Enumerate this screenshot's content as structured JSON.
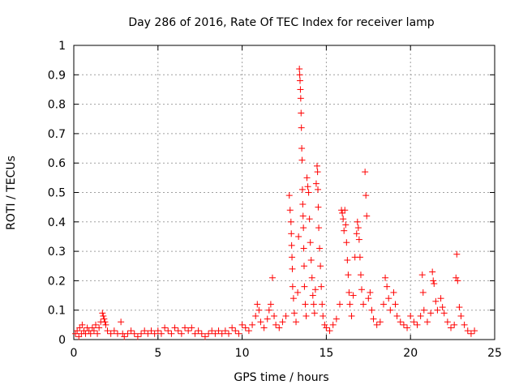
{
  "chart_data": {
    "type": "scatter",
    "title": "Day 286 of 2016, Rate Of TEC Index for receiver lamp",
    "xlabel": "GPS time / hours",
    "ylabel": "ROTI / TECUs",
    "xlim": [
      0,
      25
    ],
    "ylim": [
      0,
      1
    ],
    "xticks": [
      0,
      5,
      10,
      15,
      20,
      25
    ],
    "xtick_labels": [
      "0",
      "5",
      "10",
      "15",
      "20",
      "25"
    ],
    "yticks": [
      0,
      0.1,
      0.2,
      0.3,
      0.4,
      0.5,
      0.6,
      0.7,
      0.8,
      0.9,
      1
    ],
    "ytick_labels": [
      "0",
      "0.1",
      "0.2",
      "0.3",
      "0.4",
      "0.5",
      "0.6",
      "0.7",
      "0.8",
      "0.9",
      "1"
    ],
    "grid": true,
    "marker": "+",
    "series_color": "#ff0000",
    "series": [
      {
        "name": "ROTI",
        "points": [
          [
            0.1,
            0.02
          ],
          [
            0.2,
            0.03
          ],
          [
            0.3,
            0.01
          ],
          [
            0.35,
            0.04
          ],
          [
            0.45,
            0.02
          ],
          [
            0.5,
            0.05
          ],
          [
            0.6,
            0.03
          ],
          [
            0.7,
            0.02
          ],
          [
            0.8,
            0.04
          ],
          [
            0.9,
            0.03
          ],
          [
            1.0,
            0.02
          ],
          [
            1.1,
            0.04
          ],
          [
            1.2,
            0.03
          ],
          [
            1.3,
            0.05
          ],
          [
            1.4,
            0.02
          ],
          [
            1.5,
            0.04
          ],
          [
            1.6,
            0.06
          ],
          [
            1.7,
            0.09
          ],
          [
            1.75,
            0.08
          ],
          [
            1.8,
            0.07
          ],
          [
            1.85,
            0.06
          ],
          [
            1.9,
            0.05
          ],
          [
            2.0,
            0.03
          ],
          [
            2.2,
            0.02
          ],
          [
            2.4,
            0.03
          ],
          [
            2.6,
            0.02
          ],
          [
            2.8,
            0.06
          ],
          [
            2.9,
            0.02
          ],
          [
            3.0,
            0.01
          ],
          [
            3.2,
            0.02
          ],
          [
            3.4,
            0.03
          ],
          [
            3.6,
            0.02
          ],
          [
            3.8,
            0.01
          ],
          [
            4.0,
            0.02
          ],
          [
            4.2,
            0.03
          ],
          [
            4.4,
            0.02
          ],
          [
            4.6,
            0.03
          ],
          [
            4.8,
            0.02
          ],
          [
            5.0,
            0.03
          ],
          [
            5.2,
            0.02
          ],
          [
            5.4,
            0.04
          ],
          [
            5.6,
            0.03
          ],
          [
            5.8,
            0.02
          ],
          [
            6.0,
            0.04
          ],
          [
            6.2,
            0.03
          ],
          [
            6.4,
            0.02
          ],
          [
            6.6,
            0.04
          ],
          [
            6.8,
            0.03
          ],
          [
            7.0,
            0.04
          ],
          [
            7.2,
            0.02
          ],
          [
            7.4,
            0.03
          ],
          [
            7.6,
            0.02
          ],
          [
            7.8,
            0.01
          ],
          [
            8.0,
            0.02
          ],
          [
            8.2,
            0.03
          ],
          [
            8.4,
            0.02
          ],
          [
            8.6,
            0.03
          ],
          [
            8.8,
            0.02
          ],
          [
            9.0,
            0.03
          ],
          [
            9.2,
            0.02
          ],
          [
            9.4,
            0.04
          ],
          [
            9.6,
            0.03
          ],
          [
            9.8,
            0.02
          ],
          [
            10.0,
            0.05
          ],
          [
            10.2,
            0.04
          ],
          [
            10.4,
            0.03
          ],
          [
            10.6,
            0.05
          ],
          [
            10.8,
            0.08
          ],
          [
            10.9,
            0.12
          ],
          [
            11.0,
            0.1
          ],
          [
            11.1,
            0.06
          ],
          [
            11.3,
            0.04
          ],
          [
            11.5,
            0.07
          ],
          [
            11.6,
            0.1
          ],
          [
            11.7,
            0.12
          ],
          [
            11.8,
            0.21
          ],
          [
            11.9,
            0.08
          ],
          [
            12.0,
            0.05
          ],
          [
            12.2,
            0.04
          ],
          [
            12.4,
            0.06
          ],
          [
            12.6,
            0.08
          ],
          [
            12.8,
            0.49
          ],
          [
            12.85,
            0.44
          ],
          [
            12.9,
            0.4
          ],
          [
            12.92,
            0.36
          ],
          [
            12.94,
            0.32
          ],
          [
            12.96,
            0.28
          ],
          [
            12.98,
            0.24
          ],
          [
            13.0,
            0.18
          ],
          [
            13.05,
            0.14
          ],
          [
            13.1,
            0.09
          ],
          [
            13.2,
            0.06
          ],
          [
            13.3,
            0.16
          ],
          [
            13.35,
            0.35
          ],
          [
            13.4,
            0.92
          ],
          [
            13.42,
            0.9
          ],
          [
            13.44,
            0.88
          ],
          [
            13.46,
            0.85
          ],
          [
            13.48,
            0.82
          ],
          [
            13.5,
            0.77
          ],
          [
            13.52,
            0.72
          ],
          [
            13.54,
            0.65
          ],
          [
            13.56,
            0.61
          ],
          [
            13.58,
            0.51
          ],
          [
            13.6,
            0.46
          ],
          [
            13.62,
            0.42
          ],
          [
            13.64,
            0.38
          ],
          [
            13.66,
            0.31
          ],
          [
            13.68,
            0.25
          ],
          [
            13.7,
            0.18
          ],
          [
            13.75,
            0.12
          ],
          [
            13.8,
            0.08
          ],
          [
            13.85,
            0.55
          ],
          [
            13.9,
            0.52
          ],
          [
            13.95,
            0.5
          ],
          [
            14.0,
            0.41
          ],
          [
            14.05,
            0.33
          ],
          [
            14.1,
            0.27
          ],
          [
            14.15,
            0.21
          ],
          [
            14.2,
            0.15
          ],
          [
            14.25,
            0.12
          ],
          [
            14.3,
            0.09
          ],
          [
            14.35,
            0.17
          ],
          [
            14.4,
            0.53
          ],
          [
            14.45,
            0.59
          ],
          [
            14.48,
            0.57
          ],
          [
            14.5,
            0.51
          ],
          [
            14.52,
            0.45
          ],
          [
            14.55,
            0.38
          ],
          [
            14.6,
            0.31
          ],
          [
            14.65,
            0.25
          ],
          [
            14.7,
            0.18
          ],
          [
            14.75,
            0.12
          ],
          [
            14.8,
            0.08
          ],
          [
            14.9,
            0.05
          ],
          [
            15.0,
            0.04
          ],
          [
            15.2,
            0.03
          ],
          [
            15.4,
            0.05
          ],
          [
            15.6,
            0.07
          ],
          [
            15.8,
            0.12
          ],
          [
            15.9,
            0.44
          ],
          [
            15.95,
            0.43
          ],
          [
            16.0,
            0.41
          ],
          [
            16.05,
            0.37
          ],
          [
            16.1,
            0.44
          ],
          [
            16.15,
            0.39
          ],
          [
            16.2,
            0.33
          ],
          [
            16.25,
            0.27
          ],
          [
            16.3,
            0.22
          ],
          [
            16.35,
            0.16
          ],
          [
            16.4,
            0.12
          ],
          [
            16.5,
            0.08
          ],
          [
            16.6,
            0.15
          ],
          [
            16.7,
            0.28
          ],
          [
            16.8,
            0.36
          ],
          [
            16.85,
            0.4
          ],
          [
            16.9,
            0.38
          ],
          [
            16.95,
            0.34
          ],
          [
            17.0,
            0.28
          ],
          [
            17.05,
            0.22
          ],
          [
            17.1,
            0.17
          ],
          [
            17.2,
            0.12
          ],
          [
            17.3,
            0.57
          ],
          [
            17.35,
            0.49
          ],
          [
            17.4,
            0.42
          ],
          [
            17.5,
            0.14
          ],
          [
            17.6,
            0.16
          ],
          [
            17.7,
            0.1
          ],
          [
            17.8,
            0.07
          ],
          [
            18.0,
            0.05
          ],
          [
            18.2,
            0.06
          ],
          [
            18.4,
            0.12
          ],
          [
            18.5,
            0.21
          ],
          [
            18.6,
            0.18
          ],
          [
            18.7,
            0.14
          ],
          [
            18.8,
            0.1
          ],
          [
            19.0,
            0.16
          ],
          [
            19.1,
            0.12
          ],
          [
            19.2,
            0.08
          ],
          [
            19.4,
            0.06
          ],
          [
            19.6,
            0.05
          ],
          [
            19.8,
            0.04
          ],
          [
            20.0,
            0.08
          ],
          [
            20.2,
            0.06
          ],
          [
            20.4,
            0.05
          ],
          [
            20.6,
            0.08
          ],
          [
            20.7,
            0.22
          ],
          [
            20.75,
            0.16
          ],
          [
            20.8,
            0.1
          ],
          [
            21.0,
            0.06
          ],
          [
            21.2,
            0.09
          ],
          [
            21.3,
            0.23
          ],
          [
            21.35,
            0.2
          ],
          [
            21.4,
            0.19
          ],
          [
            21.5,
            0.13
          ],
          [
            21.6,
            0.1
          ],
          [
            21.8,
            0.14
          ],
          [
            21.9,
            0.11
          ],
          [
            22.0,
            0.09
          ],
          [
            22.2,
            0.06
          ],
          [
            22.4,
            0.04
          ],
          [
            22.6,
            0.05
          ],
          [
            22.7,
            0.21
          ],
          [
            22.75,
            0.29
          ],
          [
            22.8,
            0.2
          ],
          [
            22.9,
            0.11
          ],
          [
            23.0,
            0.08
          ],
          [
            23.2,
            0.05
          ],
          [
            23.4,
            0.03
          ],
          [
            23.6,
            0.02
          ],
          [
            23.8,
            0.03
          ]
        ]
      }
    ]
  }
}
